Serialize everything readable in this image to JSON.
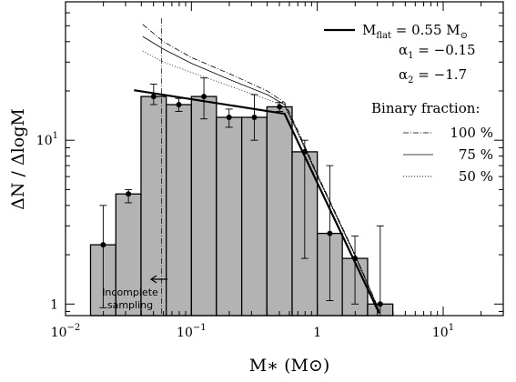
{
  "chart_data": {
    "type": "bar",
    "x_scale": "log",
    "y_scale": "log",
    "xlim": [
      0.01,
      30
    ],
    "ylim": [
      0.85,
      70
    ],
    "xlabel": "M∗ (M⊙)",
    "ylabel": "ΔN / ΔlogM",
    "x_ticks": [
      {
        "value": 0.01,
        "label": "10",
        "exp": "−2"
      },
      {
        "value": 0.1,
        "label": "10",
        "exp": "−1"
      },
      {
        "value": 1,
        "label": "1",
        "exp": ""
      },
      {
        "value": 10,
        "label": "10",
        "exp": "1"
      }
    ],
    "y_ticks": [
      {
        "value": 1,
        "label": "1",
        "exp": ""
      },
      {
        "value": 10,
        "label": "10",
        "exp": "1"
      }
    ],
    "bins": [
      {
        "lo": 0.0158,
        "hi": 0.0251,
        "value": 2.3,
        "err_lo": 0.95,
        "err_hi": 4.0
      },
      {
        "lo": 0.0251,
        "hi": 0.0398,
        "value": 4.7,
        "err_lo": 4.15,
        "err_hi": 5.0
      },
      {
        "lo": 0.0398,
        "hi": 0.0631,
        "value": 18.5,
        "err_lo": 16.5,
        "err_hi": 22.0
      },
      {
        "lo": 0.0631,
        "hi": 0.1,
        "value": 16.5,
        "err_lo": 15.0,
        "err_hi": 18.0
      },
      {
        "lo": 0.1,
        "hi": 0.158,
        "value": 18.5,
        "err_lo": 13.5,
        "err_hi": 24.0
      },
      {
        "lo": 0.158,
        "hi": 0.251,
        "value": 13.8,
        "err_lo": 12.0,
        "err_hi": 15.5
      },
      {
        "lo": 0.251,
        "hi": 0.398,
        "value": 13.8,
        "err_lo": 10.0,
        "err_hi": 19.0
      },
      {
        "lo": 0.398,
        "hi": 0.631,
        "value": 16.0,
        "err_lo": 15.0,
        "err_hi": 17.0
      },
      {
        "lo": 0.631,
        "hi": 1.0,
        "value": 8.5,
        "err_lo": 1.9,
        "err_hi": 10.0
      },
      {
        "lo": 1.0,
        "hi": 1.58,
        "value": 2.7,
        "err_lo": 1.05,
        "err_hi": 7.0
      },
      {
        "lo": 1.58,
        "hi": 2.51,
        "value": 1.9,
        "err_lo": 1.0,
        "err_hi": 2.6
      },
      {
        "lo": 2.51,
        "hi": 3.98,
        "value": 1.0,
        "err_lo": 0.85,
        "err_hi": 3.0
      }
    ],
    "model_fit": {
      "style": "solid-bold",
      "points": [
        [
          0.035,
          20.2
        ],
        [
          0.55,
          14.5
        ],
        [
          3.1,
          0.88
        ]
      ]
    },
    "binary_curves": [
      {
        "name": "100 %",
        "style": "dashdot",
        "points": [
          [
            0.041,
            51
          ],
          [
            0.06,
            40
          ],
          [
            0.1,
            32
          ],
          [
            0.2,
            25.5
          ],
          [
            0.4,
            20
          ],
          [
            0.55,
            17
          ],
          [
            0.7,
            11.5
          ],
          [
            1.0,
            6.2
          ],
          [
            1.5,
            3.2
          ],
          [
            2.0,
            2.0
          ],
          [
            3.1,
            0.92
          ]
        ]
      },
      {
        "name": "75 %",
        "style": "solid",
        "points": [
          [
            0.041,
            43
          ],
          [
            0.06,
            36
          ],
          [
            0.1,
            29.5
          ],
          [
            0.2,
            23.5
          ],
          [
            0.4,
            19
          ],
          [
            0.55,
            16.5
          ],
          [
            0.7,
            11.2
          ],
          [
            1.0,
            6.1
          ],
          [
            1.5,
            3.15
          ],
          [
            2.0,
            1.98
          ],
          [
            3.1,
            0.91
          ]
        ]
      },
      {
        "name": "50 %",
        "style": "dotted",
        "points": [
          [
            0.041,
            35
          ],
          [
            0.06,
            30
          ],
          [
            0.1,
            26
          ],
          [
            0.2,
            21.5
          ],
          [
            0.4,
            17.8
          ],
          [
            0.55,
            16
          ],
          [
            0.7,
            11
          ],
          [
            1.0,
            6.0
          ],
          [
            1.5,
            3.1
          ],
          [
            2.0,
            1.95
          ],
          [
            3.1,
            0.9
          ]
        ]
      }
    ],
    "incompleteness_limit": 0.058,
    "annotation": {
      "lines": [
        "Incomplete",
        "sampling"
      ]
    },
    "legend": {
      "placement": "top-right",
      "fit_label": "M",
      "fit_sub": "flat",
      "fit_value": " = 0.55 M",
      "alpha1_label": "α",
      "alpha1_sub": "1",
      "alpha1_value": " = −0.15",
      "alpha2_label": "α",
      "alpha2_sub": "2",
      "alpha2_value": " = −1.7",
      "binary_title": "Binary fraction:",
      "entries": [
        "100 %",
        "75 %",
        "50 %"
      ]
    },
    "colors": {
      "bar_fill": "#b3b3b3",
      "stroke": "#000000"
    }
  }
}
